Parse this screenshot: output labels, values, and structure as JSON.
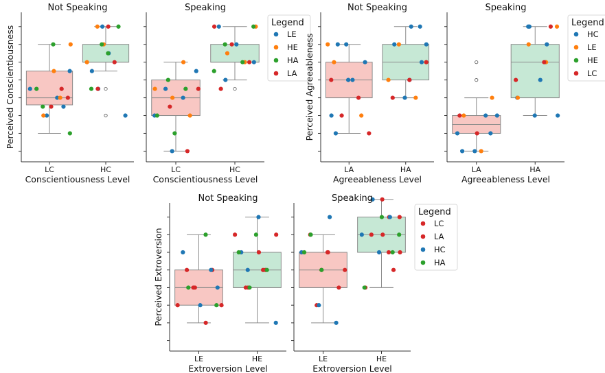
{
  "colors": {
    "LE": "#1f77b4",
    "HE": "#ff7f0e",
    "HA": "#2ca02c",
    "LA": "#d62728",
    "HC": "#1f77b4",
    "LC": "#d62728",
    "box_low": "#f4a9a3",
    "box_high": "#a8dcbf",
    "box_edge": "#8a8a8a"
  },
  "chart_data": [
    {
      "type": "box-strip",
      "title": "Not Speaking",
      "xlabel": "Conscientiousness Level",
      "ylabel": "Perceived Conscientiousness",
      "categories": [
        "LC",
        "HC"
      ],
      "ylim": [
        0.4,
        8.8
      ],
      "yticks": [
        1,
        2,
        3,
        4,
        5,
        6,
        7,
        8
      ],
      "boxes": [
        {
          "category": "LC",
          "q1": 3.6,
          "median": 4.0,
          "q3": 5.5,
          "whisker_low": 2.0,
          "whisker_high": 7.0,
          "fliers": []
        },
        {
          "category": "HC",
          "q1": 6.0,
          "median": 6.0,
          "q3": 7.0,
          "whisker_low": 5.5,
          "whisker_high": 8.0,
          "fliers": [
            3.0,
            4.5
          ]
        }
      ],
      "points": {
        "LC": {
          "LE": [
            3,
            3.5,
            4,
            4.5,
            5.5
          ],
          "HE": [
            3,
            4,
            5.5,
            7
          ],
          "HA": [
            2,
            3.5,
            4.5,
            7
          ],
          "LA": [
            3.5,
            4,
            4.5
          ]
        },
        "HC": {
          "LE": [
            3,
            4.5,
            5.5,
            6.5,
            8
          ],
          "HE": [
            6,
            7,
            8
          ],
          "HA": [
            4.5,
            6.5,
            7,
            8
          ],
          "LA": [
            4.5,
            6,
            8
          ]
        }
      },
      "legend": null
    },
    {
      "type": "box-strip",
      "title": "Speaking",
      "xlabel": "Conscientiousness Level",
      "ylabel": "",
      "categories": [
        "LC",
        "HC"
      ],
      "ylim": [
        0.4,
        8.8
      ],
      "yticks": [
        1,
        2,
        3,
        4,
        5,
        6,
        7,
        8
      ],
      "boxes": [
        {
          "category": "LC",
          "q1": 3.0,
          "median": 4.0,
          "q3": 5.0,
          "whisker_low": 1.0,
          "whisker_high": 6.0,
          "fliers": []
        },
        {
          "category": "HC",
          "q1": 6.0,
          "median": 6.0,
          "q3": 7.0,
          "whisker_low": 5.0,
          "whisker_high": 8.0,
          "fliers": [
            4.5
          ]
        }
      ],
      "points": {
        "LC": {
          "LE": [
            1,
            3,
            4,
            4.5,
            5.5
          ],
          "HE": [
            3,
            4,
            4.5,
            6
          ],
          "HA": [
            2,
            3,
            4.5,
            5
          ],
          "LA": [
            1,
            3.5,
            4.5
          ]
        },
        "HC": {
          "LE": [
            5,
            6,
            7,
            8
          ],
          "HE": [
            6,
            6.5,
            8
          ],
          "HA": [
            5.5,
            6,
            7,
            8
          ],
          "LA": [
            4.5,
            6,
            7,
            8
          ]
        }
      },
      "legend": {
        "title": "Legend",
        "placement": "right",
        "entries": [
          {
            "key": "LE",
            "label": "LE"
          },
          {
            "key": "HE",
            "label": "HE"
          },
          {
            "key": "HA",
            "label": "HA"
          },
          {
            "key": "LA",
            "label": "LA"
          }
        ]
      }
    },
    {
      "type": "box-strip",
      "title": "Not Speaking",
      "xlabel": "Agreeableness Level",
      "ylabel": "Perceived Agreeableness",
      "categories": [
        "LA",
        "HA"
      ],
      "ylim": [
        0.4,
        8.8
      ],
      "yticks": [
        1,
        2,
        3,
        4,
        5,
        6,
        7,
        8
      ],
      "boxes": [
        {
          "category": "LA",
          "q1": 4.0,
          "median": 5.0,
          "q3": 6.0,
          "whisker_low": 2.0,
          "whisker_high": 7.0,
          "fliers": []
        },
        {
          "category": "HA",
          "q1": 5.0,
          "median": 6.0,
          "q3": 7.0,
          "whisker_low": 4.0,
          "whisker_high": 8.0,
          "fliers": []
        }
      ],
      "points": {
        "LA": {
          "HC": [
            3,
            5,
            6,
            7
          ],
          "LE": [
            2,
            5,
            7
          ],
          "HE": [
            3,
            6,
            7
          ],
          "LC": [
            2,
            3,
            4,
            5
          ]
        },
        "HA": {
          "HC": [
            4,
            6,
            7,
            8
          ],
          "LE": [
            5,
            7,
            8
          ],
          "HE": [
            4,
            5,
            6,
            7
          ],
          "LC": [
            4,
            5,
            6
          ]
        }
      },
      "legend": null
    },
    {
      "type": "box-strip",
      "title": "Speaking",
      "xlabel": "Agreeableness Level",
      "ylabel": "",
      "categories": [
        "LA",
        "HA"
      ],
      "ylim": [
        0.4,
        8.8
      ],
      "yticks": [
        1,
        2,
        3,
        4,
        5,
        6,
        7,
        8
      ],
      "boxes": [
        {
          "category": "LA",
          "q1": 2.0,
          "median": 2.5,
          "q3": 3.0,
          "whisker_low": 1.0,
          "whisker_high": 4.0,
          "fliers": [
            5.0,
            6.0
          ]
        },
        {
          "category": "HA",
          "q1": 4.0,
          "median": 6.0,
          "q3": 7.0,
          "whisker_low": 3.0,
          "whisker_high": 8.0,
          "fliers": []
        }
      ],
      "points": {
        "LA": {
          "HC": [
            1,
            2,
            3
          ],
          "LE": [
            1,
            2,
            3
          ],
          "HE": [
            1,
            3,
            4
          ],
          "LC": [
            2,
            3
          ]
        },
        "HA": {
          "HC": [
            3,
            5,
            7,
            8
          ],
          "LE": [
            3,
            4,
            6,
            8
          ],
          "HE": [
            4,
            6,
            7,
            8
          ],
          "LC": [
            5,
            6,
            8
          ]
        }
      },
      "legend": {
        "title": "Legend",
        "placement": "right",
        "entries": [
          {
            "key": "LE",
            "label": "HC"
          },
          {
            "key": "HE",
            "label": "LE"
          },
          {
            "key": "HA",
            "label": "HE"
          },
          {
            "key": "LA",
            "label": "LC"
          }
        ]
      }
    },
    {
      "type": "box-strip",
      "title": "Not Speaking",
      "xlabel": "Extroversion Level",
      "ylabel": "Perceived Extroversion",
      "categories": [
        "LE",
        "HE"
      ],
      "ylim": [
        0.4,
        8.8
      ],
      "yticks": [
        1,
        2,
        3,
        4,
        5,
        6,
        7,
        8
      ],
      "boxes": [
        {
          "category": "LE",
          "q1": 3.0,
          "median": 4.0,
          "q3": 5.0,
          "whisker_low": 2.0,
          "whisker_high": 7.0,
          "fliers": []
        },
        {
          "category": "HE",
          "q1": 4.0,
          "median": 5.0,
          "q3": 6.0,
          "whisker_low": 2.0,
          "whisker_high": 8.0,
          "fliers": []
        }
      ],
      "points": {
        "LE": {
          "LC": [
            3,
            4,
            5
          ],
          "LA": [
            2,
            3,
            4,
            5
          ],
          "HC": [
            3,
            4,
            5,
            6
          ],
          "HA": [
            3,
            4,
            7
          ]
        },
        "HE": {
          "LC": [
            4,
            5,
            6,
            7
          ],
          "LA": [
            4,
            5,
            7
          ],
          "HC": [
            2,
            5,
            6,
            8
          ],
          "HA": [
            4,
            5,
            6,
            7
          ]
        }
      },
      "legend": null
    },
    {
      "type": "box-strip",
      "title": "Speaking",
      "xlabel": "Extroversion Level",
      "ylabel": "",
      "categories": [
        "LE",
        "HE"
      ],
      "ylim": [
        0.4,
        8.8
      ],
      "yticks": [
        1,
        2,
        3,
        4,
        5,
        6,
        7,
        8
      ],
      "boxes": [
        {
          "category": "LE",
          "q1": 4.0,
          "median": 5.0,
          "q3": 6.0,
          "whisker_low": 2.0,
          "whisker_high": 7.0,
          "fliers": []
        },
        {
          "category": "HE",
          "q1": 6.0,
          "median": 7.0,
          "q3": 8.0,
          "whisker_low": 4.0,
          "whisker_high": 9.0,
          "fliers": []
        }
      ],
      "points": {
        "LE": {
          "LC": [
            3,
            5,
            6,
            7
          ],
          "LA": [
            4,
            5,
            6
          ],
          "HC": [
            2,
            3,
            6,
            8
          ],
          "HA": [
            5,
            6,
            7
          ]
        },
        "HE": {
          "LC": [
            6,
            7,
            8,
            9
          ],
          "LA": [
            4,
            5,
            6,
            7,
            8
          ],
          "HC": [
            6,
            7,
            8,
            9
          ],
          "HA": [
            4,
            6,
            7,
            8
          ]
        }
      },
      "legend": {
        "title": "Legend",
        "placement": "right",
        "entries": [
          {
            "key": "LC",
            "label": "LC"
          },
          {
            "key": "LA",
            "label": "LA"
          },
          {
            "key": "HC",
            "label": "HC"
          },
          {
            "key": "HA",
            "label": "HA"
          }
        ]
      }
    }
  ]
}
